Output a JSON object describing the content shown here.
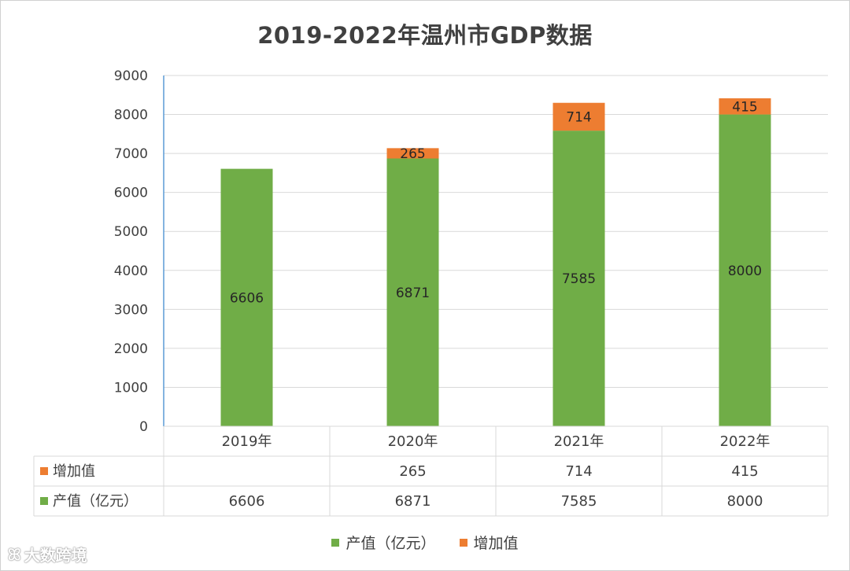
{
  "chart_data": {
    "type": "bar",
    "stacked": true,
    "title": "2019-2022年温州市GDP数据",
    "categories": [
      "2019年",
      "2020年",
      "2021年",
      "2022年"
    ],
    "series": [
      {
        "name": "产值（亿元）",
        "color": "#70ad47",
        "values": [
          6606,
          6871,
          7585,
          8000
        ]
      },
      {
        "name": "增加值",
        "color": "#ed7d31",
        "values": [
          null,
          265,
          714,
          415
        ]
      }
    ],
    "ylim": [
      0,
      9000
    ],
    "yticks": [
      0,
      1000,
      2000,
      3000,
      4000,
      5000,
      6000,
      7000,
      8000,
      9000
    ],
    "grid": true,
    "legend": "bottom",
    "data_table": {
      "rows": [
        {
          "label": "增加值",
          "color": "#ed7d31",
          "cells": [
            "",
            "265",
            "714",
            "415"
          ]
        },
        {
          "label": "产值（亿元）",
          "color": "#70ad47",
          "cells": [
            "6606",
            "6871",
            "7585",
            "8000"
          ]
        }
      ]
    }
  },
  "legend_items": [
    {
      "label": "产值（亿元）",
      "color": "#70ad47"
    },
    {
      "label": "增加值",
      "color": "#ed7d31"
    }
  ],
  "watermark": {
    "logo": "ꕤ",
    "text": "大数跨境"
  }
}
